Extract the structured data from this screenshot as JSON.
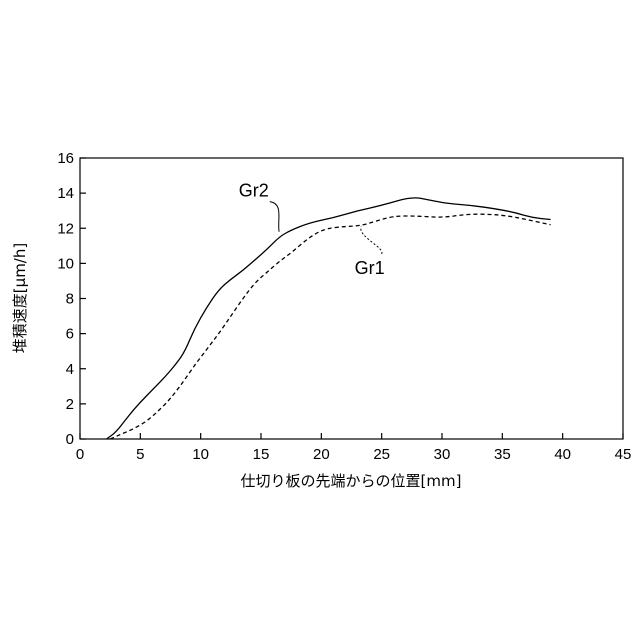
{
  "chart_data": {
    "type": "line",
    "xlabel": "仕切り板の先端からの位置[mm]",
    "ylabel": "堆積速度[μm/h]",
    "xlim": [
      0,
      45
    ],
    "ylim": [
      0,
      16
    ],
    "x_ticks": [
      0,
      5,
      10,
      15,
      20,
      25,
      30,
      35,
      40,
      45
    ],
    "y_ticks": [
      0,
      2,
      4,
      6,
      8,
      10,
      12,
      14,
      16
    ],
    "grid": false,
    "legend": "none",
    "series": [
      {
        "name": "Gr2",
        "style": "solid",
        "color": "#000000",
        "label_anchor": [
          16.5,
          11.8
        ],
        "label_pos": [
          14.4,
          13.8
        ],
        "points": [
          [
            2.2,
            0.0
          ],
          [
            3.0,
            0.4
          ],
          [
            4.0,
            1.3
          ],
          [
            5.0,
            2.1
          ],
          [
            6.0,
            2.8
          ],
          [
            7.0,
            3.5
          ],
          [
            8.0,
            4.3
          ],
          [
            8.7,
            5.0
          ],
          [
            9.5,
            6.3
          ],
          [
            10.5,
            7.5
          ],
          [
            11.5,
            8.5
          ],
          [
            12.5,
            9.1
          ],
          [
            13.5,
            9.6
          ],
          [
            14.5,
            10.2
          ],
          [
            15.5,
            10.8
          ],
          [
            16.5,
            11.5
          ],
          [
            17.5,
            11.9
          ],
          [
            19.0,
            12.3
          ],
          [
            21.0,
            12.6
          ],
          [
            23.0,
            13.0
          ],
          [
            25.0,
            13.3
          ],
          [
            27.5,
            13.8
          ],
          [
            29.0,
            13.6
          ],
          [
            30.5,
            13.4
          ],
          [
            32.5,
            13.3
          ],
          [
            34.5,
            13.1
          ],
          [
            36.0,
            12.9
          ],
          [
            37.5,
            12.6
          ],
          [
            39.0,
            12.5
          ]
        ]
      },
      {
        "name": "Gr1",
        "style": "dashed",
        "color": "#000000",
        "label_anchor": [
          23.3,
          12.1
        ],
        "label_pos": [
          24.0,
          9.4
        ],
        "points": [
          [
            2.5,
            0.0
          ],
          [
            3.5,
            0.3
          ],
          [
            4.5,
            0.6
          ],
          [
            5.5,
            1.0
          ],
          [
            6.5,
            1.6
          ],
          [
            7.5,
            2.3
          ],
          [
            8.5,
            3.2
          ],
          [
            9.5,
            4.2
          ],
          [
            10.5,
            5.1
          ],
          [
            11.5,
            6.0
          ],
          [
            12.5,
            7.0
          ],
          [
            13.5,
            8.0
          ],
          [
            14.5,
            8.9
          ],
          [
            15.5,
            9.5
          ],
          [
            16.5,
            10.1
          ],
          [
            17.5,
            10.6
          ],
          [
            18.5,
            11.2
          ],
          [
            19.5,
            11.7
          ],
          [
            20.5,
            12.0
          ],
          [
            22.0,
            12.1
          ],
          [
            23.3,
            12.15
          ],
          [
            24.5,
            12.4
          ],
          [
            26.0,
            12.7
          ],
          [
            28.0,
            12.7
          ],
          [
            30.0,
            12.6
          ],
          [
            32.0,
            12.8
          ],
          [
            34.0,
            12.8
          ],
          [
            35.5,
            12.7
          ],
          [
            37.0,
            12.5
          ],
          [
            39.0,
            12.2
          ]
        ]
      }
    ]
  }
}
